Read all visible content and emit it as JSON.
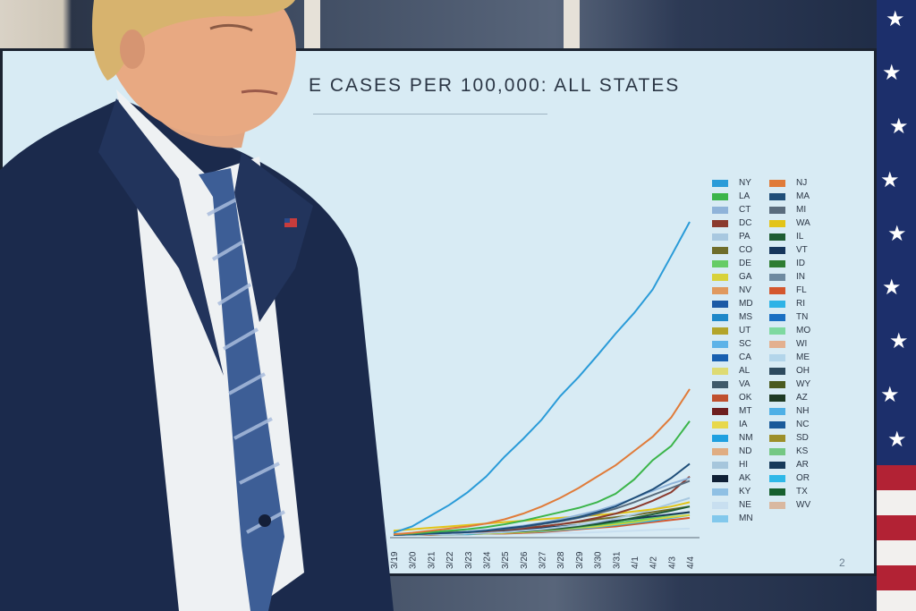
{
  "screen": {
    "title": "E CASES PER 100,000: ALL STATES",
    "page_number": "2"
  },
  "chart_data": {
    "type": "line",
    "title": "E CASES PER 100,000: ALL STATES",
    "xlabel": "",
    "ylabel": "",
    "categories": [
      "3/19",
      "3/20",
      "3/21",
      "3/22",
      "3/23",
      "3/24",
      "3/25",
      "3/26",
      "3/27",
      "3/28",
      "3/29",
      "3/30",
      "3/31",
      "4/1",
      "4/2",
      "4/3",
      "4/4"
    ],
    "series": [
      {
        "name": "NY",
        "color": "#2a9bd8",
        "values": [
          3,
          12,
          27,
          42,
          60,
          82,
          110,
          135,
          162,
          195,
          222,
          252,
          283,
          312,
          345,
          392,
          440
        ]
      },
      {
        "name": "NJ",
        "color": "#e07b39",
        "values": [
          1,
          3,
          6,
          9,
          12,
          16,
          22,
          30,
          40,
          52,
          66,
          82,
          98,
          118,
          138,
          165,
          205
        ]
      },
      {
        "name": "LA",
        "color": "#3bb54a",
        "values": [
          1,
          2,
          4,
          6,
          8,
          11,
          15,
          20,
          26,
          32,
          38,
          46,
          58,
          78,
          105,
          125,
          160
        ]
      },
      {
        "name": "MA",
        "color": "#1f4e79",
        "values": [
          0,
          1,
          2,
          3,
          4,
          6,
          9,
          12,
          16,
          20,
          25,
          32,
          40,
          52,
          64,
          80,
          100
        ]
      },
      {
        "name": "CT",
        "color": "#8fb3d9",
        "values": [
          0,
          1,
          2,
          3,
          5,
          7,
          10,
          13,
          17,
          22,
          28,
          34,
          42,
          52,
          62,
          72,
          80
        ]
      },
      {
        "name": "MI",
        "color": "#5a6c7d",
        "values": [
          0,
          1,
          2,
          3,
          4,
          6,
          8,
          11,
          15,
          19,
          24,
          30,
          37,
          46,
          56,
          66,
          76
        ]
      },
      {
        "name": "DC",
        "color": "#8b3a2e",
        "values": [
          0,
          1,
          2,
          3,
          4,
          5,
          7,
          9,
          12,
          15,
          19,
          24,
          30,
          38,
          48,
          60,
          82
        ]
      },
      {
        "name": "WA",
        "color": "#e3c417",
        "values": [
          6,
          8,
          10,
          12,
          14,
          16,
          18,
          20,
          22,
          24,
          26,
          28,
          30,
          33,
          36,
          40,
          46
        ]
      },
      {
        "name": "PA",
        "color": "#a8c8e0",
        "values": [
          0,
          0,
          1,
          1,
          2,
          3,
          4,
          6,
          8,
          11,
          14,
          18,
          23,
          29,
          36,
          44,
          52
        ]
      },
      {
        "name": "IL",
        "color": "#1e5c32",
        "values": [
          0,
          0,
          1,
          1,
          2,
          3,
          4,
          5,
          7,
          9,
          12,
          15,
          19,
          24,
          29,
          34,
          40
        ]
      },
      {
        "name": "CO",
        "color": "#6f6d2a",
        "values": [
          1,
          2,
          3,
          4,
          5,
          6,
          8,
          10,
          12,
          15,
          18,
          22,
          25,
          28,
          32,
          36,
          40
        ]
      },
      {
        "name": "VT",
        "color": "#16365c",
        "values": [
          0,
          1,
          2,
          3,
          4,
          5,
          6,
          8,
          10,
          12,
          14,
          17,
          20,
          23,
          26,
          29,
          32
        ]
      },
      {
        "name": "DE",
        "color": "#66cc66",
        "values": [
          0,
          0,
          1,
          1,
          2,
          3,
          4,
          5,
          7,
          9,
          11,
          14,
          17,
          20,
          24,
          28,
          32
        ]
      },
      {
        "name": "GA",
        "color": "#d8d23a",
        "values": [
          0,
          0,
          1,
          1,
          2,
          2,
          3,
          4,
          6,
          8,
          10,
          12,
          15,
          18,
          22,
          25,
          28
        ]
      },
      {
        "name": "RI",
        "color": "#2eb3e6",
        "values": [
          0,
          0,
          1,
          1,
          1,
          2,
          3,
          4,
          5,
          7,
          9,
          11,
          14,
          17,
          20,
          24,
          28
        ]
      },
      {
        "name": "FL",
        "color": "#d4572e",
        "values": [
          0,
          0,
          0,
          1,
          1,
          2,
          2,
          3,
          4,
          6,
          8,
          10,
          12,
          15,
          18,
          21,
          24
        ]
      },
      {
        "name": "NE",
        "color": "#c8dff0",
        "values": [
          0,
          0,
          0,
          0,
          1,
          1,
          1,
          2,
          2,
          3,
          3,
          4,
          5,
          6,
          7,
          8,
          9
        ]
      }
    ]
  },
  "legend": {
    "items": [
      {
        "label": "NY",
        "color": "#2a9bd8"
      },
      {
        "label": "NJ",
        "color": "#e07b39"
      },
      {
        "label": "LA",
        "color": "#3bb54a"
      },
      {
        "label": "MA",
        "color": "#1f4e79"
      },
      {
        "label": "CT",
        "color": "#8fb3d9"
      },
      {
        "label": "MI",
        "color": "#5a6c7d"
      },
      {
        "label": "DC",
        "color": "#8b3a2e"
      },
      {
        "label": "WA",
        "color": "#e3c417"
      },
      {
        "label": "PA",
        "color": "#a8c8e0"
      },
      {
        "label": "IL",
        "color": "#1e5c32"
      },
      {
        "label": "CO",
        "color": "#6f6d2a"
      },
      {
        "label": "VT",
        "color": "#16365c"
      },
      {
        "label": "DE",
        "color": "#66cc66"
      },
      {
        "label": "ID",
        "color": "#2e7d32"
      },
      {
        "label": "GA",
        "color": "#d8d23a"
      },
      {
        "label": "IN",
        "color": "#6e8aa0"
      },
      {
        "label": "NV",
        "color": "#e0995e"
      },
      {
        "label": "FL",
        "color": "#d4572e"
      },
      {
        "label": "MD",
        "color": "#1c5aa6"
      },
      {
        "label": "RI",
        "color": "#2eb3e6"
      },
      {
        "label": "MS",
        "color": "#1e88c9"
      },
      {
        "label": "TN",
        "color": "#1a6fc2"
      },
      {
        "label": "UT",
        "color": "#b3a52a"
      },
      {
        "label": "MO",
        "color": "#7ed9a0"
      },
      {
        "label": "SC",
        "color": "#5db3e8"
      },
      {
        "label": "WI",
        "color": "#e3b08f"
      },
      {
        "label": "CA",
        "color": "#175fb0"
      },
      {
        "label": "ME",
        "color": "#b3d5ea"
      },
      {
        "label": "AL",
        "color": "#dedb73"
      },
      {
        "label": "OH",
        "color": "#2d4a5e"
      },
      {
        "label": "VA",
        "color": "#3f5a6a"
      },
      {
        "label": "WY",
        "color": "#4a5a1e"
      },
      {
        "label": "OK",
        "color": "#c0502e"
      },
      {
        "label": "AZ",
        "color": "#1e3a24"
      },
      {
        "label": "MT",
        "color": "#6e1f1f"
      },
      {
        "label": "NH",
        "color": "#4fb0e6"
      },
      {
        "label": "IA",
        "color": "#e8d84a"
      },
      {
        "label": "NC",
        "color": "#1a5a9a"
      },
      {
        "label": "NM",
        "color": "#1fa0e0"
      },
      {
        "label": "SD",
        "color": "#9c8f2a"
      },
      {
        "label": "ND",
        "color": "#e0ad82"
      },
      {
        "label": "KS",
        "color": "#74c884"
      },
      {
        "label": "HI",
        "color": "#a6c6dc"
      },
      {
        "label": "AR",
        "color": "#173a5a"
      },
      {
        "label": "AK",
        "color": "#0f2036"
      },
      {
        "label": "OR",
        "color": "#2eb8e8"
      },
      {
        "label": "KY",
        "color": "#8fc0e4"
      },
      {
        "label": "TX",
        "color": "#17602f"
      },
      {
        "label": "NE",
        "color": "#c8dff0"
      },
      {
        "label": "WV",
        "color": "#d9b8a0"
      },
      {
        "label": "MN",
        "color": "#82c8ec"
      }
    ]
  },
  "colors": {
    "screen_bg": "#d8ebf4",
    "suit": "#1b2a4c",
    "flag_blue": "#1c2f6b",
    "flag_red": "#b22234"
  }
}
